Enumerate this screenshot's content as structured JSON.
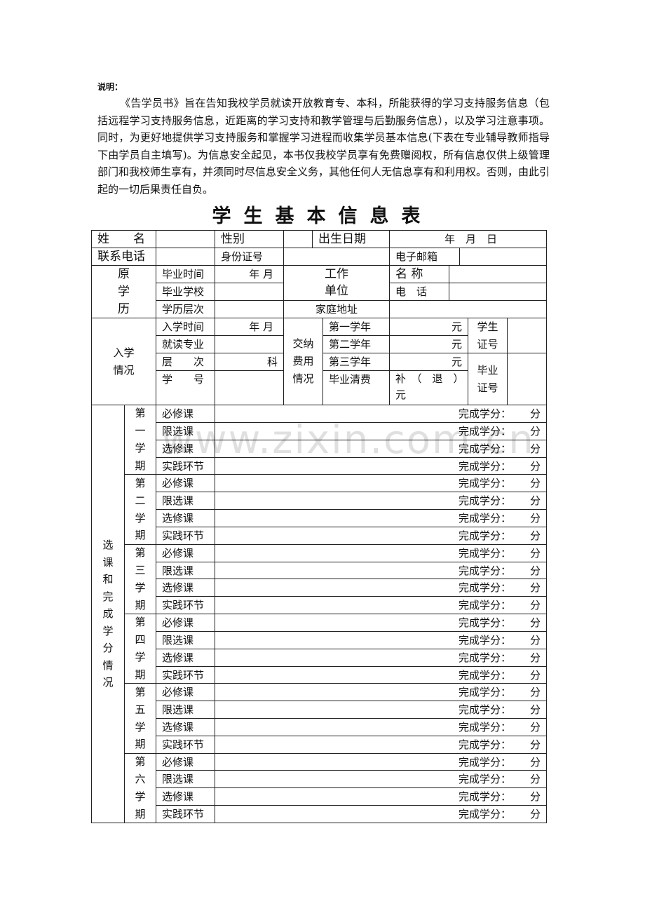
{
  "note": {
    "label": "说明：",
    "text": "《告学员书》旨在告知我校学员就读开放教育专、本科，所能获得的学习支持服务信息（包括远程学习支持服务信息，近距离的学习支持和教学管理与后勤服务信息），以及学习注意事项。同时，为更好地提供学习支持服务和掌握学习进程而收集学员基本信息(下表在专业辅导教师指导下由学员自主填写)。为信息安全起见，本书仅我校学员享有免费赠阅权，所有信息仅供上级管理部门和我校师生享有，并须同时尽信息安全义务，其他任何人无信息享有和利用权。否则，由此引起的一切后果责任自负。"
  },
  "title": "学生基本信息表",
  "watermark": "www.zixin.com.cn",
  "form": {
    "name": "姓　　名",
    "gender": "性别",
    "birth": "出生日期",
    "ymd": "年　月　日",
    "phone": "联系电话",
    "id_no": "身份证号",
    "email": "电子邮箱",
    "prior_edu": "原学历",
    "grad_time": "毕业时间",
    "ym": "年 月",
    "grad_school": "毕业学校",
    "edu_level": "学历层次",
    "work_unit_1": "工作",
    "work_unit_2": "单位",
    "unit_name": "名 称",
    "unit_phone": "电　话",
    "home_addr": "家庭地址",
    "enroll": "入学情况",
    "enroll_time": "入学时间",
    "major": "就读专业",
    "level": "层　　次",
    "level_unit": "科",
    "student_no": "学　　号",
    "fees": "交纳费用情况",
    "year1": "第一学年",
    "year2": "第二学年",
    "year3": "第三学年",
    "final_fee": "毕业清费",
    "yuan": "元",
    "refund": "补　（　退　）元",
    "student_card": "学生证号",
    "grad_cert": "毕业证号"
  },
  "courses": {
    "section_label": "选课和完成学分情况",
    "credit_label": "完成学分：",
    "unit": "分",
    "types": [
      "必修课",
      "限选课",
      "选修课",
      "实践环节"
    ],
    "semesters": [
      "第一学期",
      "第二学期",
      "第三学期",
      "第四学期",
      "第五学期",
      "第六学期"
    ]
  }
}
